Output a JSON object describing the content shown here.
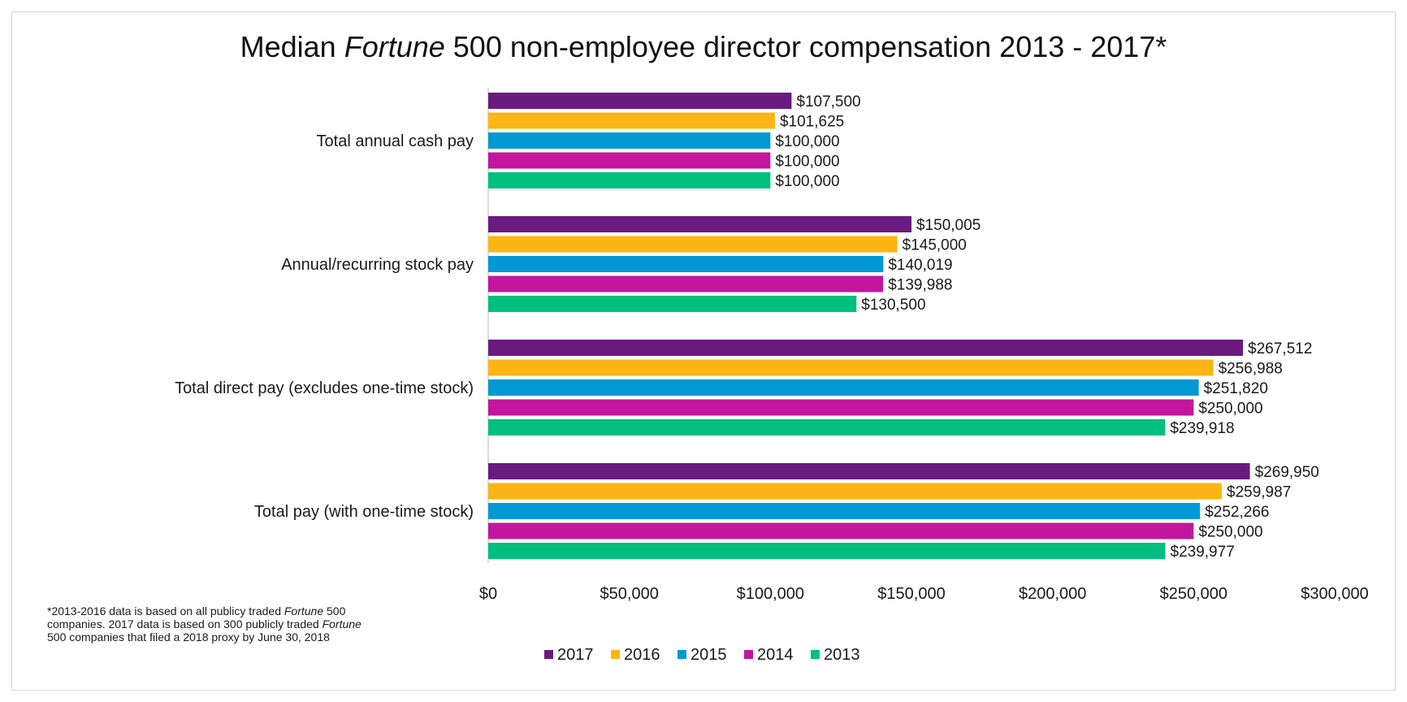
{
  "chart_data": {
    "type": "bar",
    "orientation": "horizontal",
    "title": {
      "prefix": "Median ",
      "italic": "Fortune",
      "suffix": " 500 non-employee director compensation 2013 - 2017*"
    },
    "categories": [
      "Total annual cash pay",
      "Annual/recurring stock pay",
      "Total direct pay (excludes one-time stock)",
      "Total pay (with one-time stock)"
    ],
    "series": [
      {
        "name": "2017",
        "color": "#6a1b7f",
        "values": [
          107500,
          150005,
          267512,
          269950
        ],
        "labels": [
          "$107,500",
          "$150,005",
          "$267,512",
          "$269,950"
        ]
      },
      {
        "name": "2016",
        "color": "#fdb515",
        "values": [
          101625,
          145000,
          256988,
          259987
        ],
        "labels": [
          "$101,625",
          "$145,000",
          "$256,988",
          "$259,987"
        ]
      },
      {
        "name": "2015",
        "color": "#0099d4",
        "values": [
          100000,
          140019,
          251820,
          252266
        ],
        "labels": [
          "$100,000",
          "$140,019",
          "$251,820",
          "$252,266"
        ]
      },
      {
        "name": "2014",
        "color": "#c2169e",
        "values": [
          100000,
          139988,
          250000,
          250000
        ],
        "labels": [
          "$100,000",
          "$139,988",
          "$250,000",
          "$250,000"
        ]
      },
      {
        "name": "2013",
        "color": "#00bf7f",
        "values": [
          100000,
          130500,
          239918,
          239977
        ],
        "labels": [
          "$100,000",
          "$130,500",
          "$239,918",
          "$239,977"
        ]
      }
    ],
    "xlim": [
      0,
      300000
    ],
    "xticks": [
      0,
      50000,
      100000,
      150000,
      200000,
      250000,
      300000
    ],
    "xtick_labels": [
      "$0",
      "$50,000",
      "$100,000",
      "$150,000",
      "$200,000",
      "$250,000",
      "$300,000"
    ],
    "grid": false,
    "legend_position": "bottom",
    "legend_order": [
      "2017",
      "2016",
      "2015",
      "2014",
      "2013"
    ],
    "footnote": [
      [
        {
          "text": "*2013-2016 data is based on all publicy traded "
        },
        {
          "text": "Fortune",
          "italic": true
        },
        {
          "text": " 500"
        }
      ],
      [
        {
          "text": "companies. 2017 data is based on 300 publicly traded "
        },
        {
          "text": "Fortune",
          "italic": true
        }
      ],
      [
        {
          "text": "500 companies that filed a 2018 proxy by June 30, 2018"
        }
      ]
    ]
  }
}
